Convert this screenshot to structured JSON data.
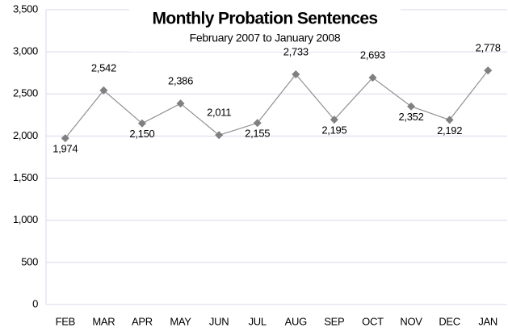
{
  "chart_data": {
    "type": "line",
    "title": "Monthly Probation Sentences",
    "subtitle": "February 2007 to January 2008",
    "categories": [
      "FEB",
      "MAR",
      "APR",
      "MAY",
      "JUN",
      "JUL",
      "AUG",
      "SEP",
      "OCT",
      "NOV",
      "DEC",
      "JAN"
    ],
    "values": [
      1974,
      2542,
      2150,
      2386,
      2011,
      2155,
      2733,
      2195,
      2693,
      2352,
      2192,
      2778
    ],
    "value_labels": [
      "1,974",
      "2,542",
      "2,150",
      "2,386",
      "2,011",
      "2,155",
      "2,733",
      "2,195",
      "2,693",
      "2,352",
      "2,192",
      "2,778"
    ],
    "color": "#808080",
    "ylim": [
      0,
      3500
    ],
    "yticks": [
      0,
      500,
      {
        "value": 1000,
        "label": "1,000"
      },
      {
        "value": 1500,
        "label": "1,500"
      },
      {
        "value": 2000,
        "label": "2,000"
      },
      {
        "value": 2500,
        "label": "2,500"
      },
      {
        "value": 3000,
        "label": "3,000"
      },
      {
        "value": 3500,
        "label": "3,500"
      }
    ],
    "grid": true
  }
}
